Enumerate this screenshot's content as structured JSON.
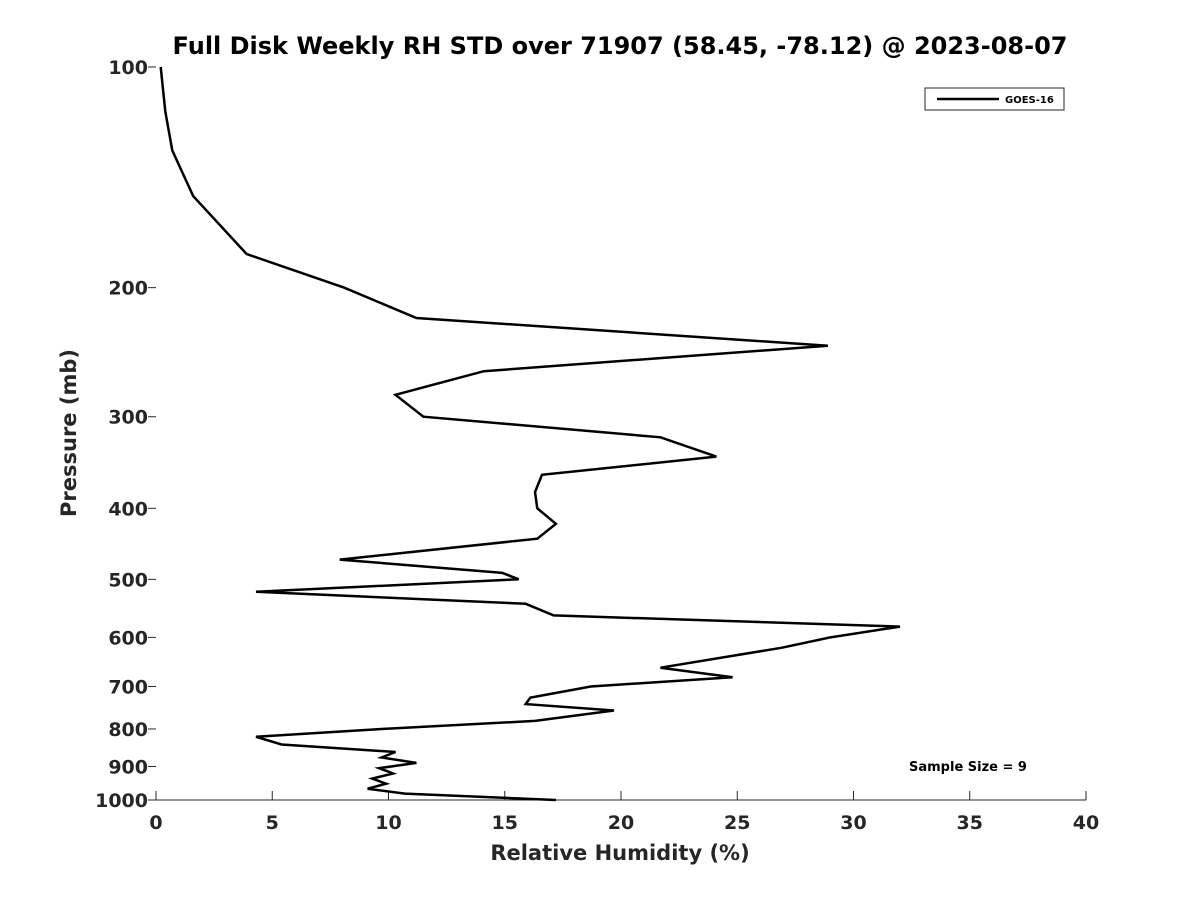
{
  "chart_data": {
    "type": "line",
    "title": "Full Disk Weekly RH STD over 71907 (58.45, -78.12) @ 2023-08-07",
    "xlabel": "Relative Humidity (%)",
    "ylabel": "Pressure (mb)",
    "xlim": [
      0,
      40
    ],
    "ylim": [
      1000,
      100
    ],
    "y_scale": "log",
    "x_ticks": [
      0,
      5,
      10,
      15,
      20,
      25,
      30,
      35,
      40
    ],
    "y_ticks": [
      100,
      200,
      300,
      400,
      500,
      600,
      700,
      800,
      900,
      1000
    ],
    "grid": false,
    "legend_position": "top-right",
    "annotation": "Sample Size = 9",
    "series": [
      {
        "name": "GOES-16",
        "color": "#000000",
        "points": [
          [
            0.2,
            100
          ],
          [
            0.4,
            115
          ],
          [
            0.7,
            130
          ],
          [
            1.6,
            150
          ],
          [
            3.9,
            180
          ],
          [
            8.1,
            200
          ],
          [
            11.2,
            220
          ],
          [
            28.9,
            240
          ],
          [
            14.1,
            260
          ],
          [
            10.3,
            280
          ],
          [
            11.5,
            300
          ],
          [
            21.7,
            320
          ],
          [
            24.1,
            340
          ],
          [
            16.6,
            360
          ],
          [
            16.3,
            380
          ],
          [
            16.4,
            400
          ],
          [
            17.2,
            420
          ],
          [
            16.4,
            440
          ],
          [
            7.9,
            470
          ],
          [
            14.9,
            490
          ],
          [
            15.6,
            500
          ],
          [
            4.3,
            520
          ],
          [
            15.9,
            540
          ],
          [
            17.1,
            560
          ],
          [
            32.0,
            580
          ],
          [
            29.0,
            600
          ],
          [
            26.9,
            620
          ],
          [
            21.7,
            660
          ],
          [
            24.8,
            680
          ],
          [
            18.7,
            700
          ],
          [
            16.1,
            725
          ],
          [
            15.9,
            740
          ],
          [
            19.7,
            755
          ],
          [
            16.3,
            780
          ],
          [
            9.7,
            800
          ],
          [
            4.3,
            820
          ],
          [
            5.4,
            840
          ],
          [
            10.3,
            860
          ],
          [
            9.7,
            875
          ],
          [
            11.2,
            890
          ],
          [
            9.6,
            905
          ],
          [
            10.2,
            920
          ],
          [
            9.3,
            935
          ],
          [
            9.9,
            950
          ],
          [
            9.1,
            965
          ],
          [
            10.7,
            980
          ],
          [
            17.2,
            1000
          ]
        ]
      }
    ]
  }
}
